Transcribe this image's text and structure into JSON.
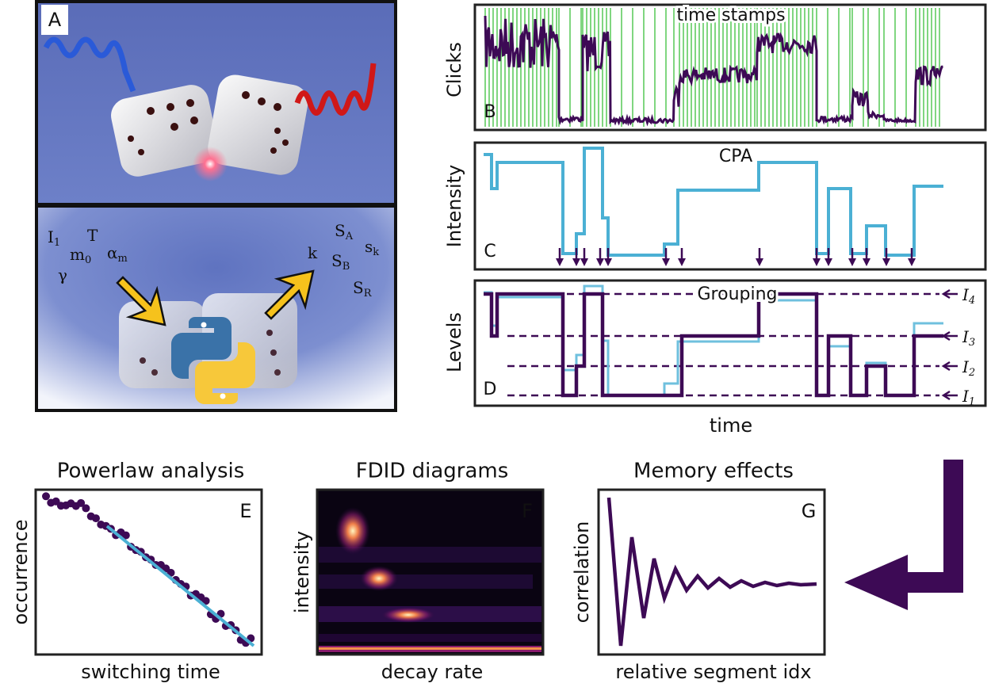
{
  "panel_a": {
    "label": "A",
    "symbols": [
      {
        "base": "I",
        "sub": "1"
      },
      {
        "base": "T"
      },
      {
        "base": "m",
        "sub": "0"
      },
      {
        "base": "α",
        "sub": "m"
      },
      {
        "base": "γ"
      },
      {
        "base": "k"
      },
      {
        "base": "S",
        "sub": "A"
      },
      {
        "base": "s",
        "sub": "k"
      },
      {
        "base": "S",
        "sub": "B"
      },
      {
        "base": "S",
        "sub": "R"
      }
    ]
  },
  "panel_b": {
    "label": "B",
    "ylabel": "Clicks",
    "annotation": "time stamps"
  },
  "panel_c": {
    "label": "C",
    "ylabel": "Intensity",
    "annotation": "CPA"
  },
  "panel_d": {
    "label": "D",
    "ylabel": "Levels",
    "annotation": "Grouping",
    "levels": [
      {
        "base": "I",
        "sub": "4"
      },
      {
        "base": "I",
        "sub": "3"
      },
      {
        "base": "I",
        "sub": "2"
      },
      {
        "base": "I",
        "sub": "1"
      }
    ]
  },
  "xlabel": "time",
  "panel_e": {
    "title": "Powerlaw analysis",
    "label": "E",
    "ylabel": "occurrence",
    "xlabel": "switching time"
  },
  "panel_f": {
    "title": "FDID diagrams",
    "label": "F",
    "ylabel": "intensity",
    "xlabel": "decay rate"
  },
  "panel_g": {
    "title": "Memory effects",
    "label": "G",
    "ylabel": "correlation",
    "xlabel": "relative segment idx"
  }
}
